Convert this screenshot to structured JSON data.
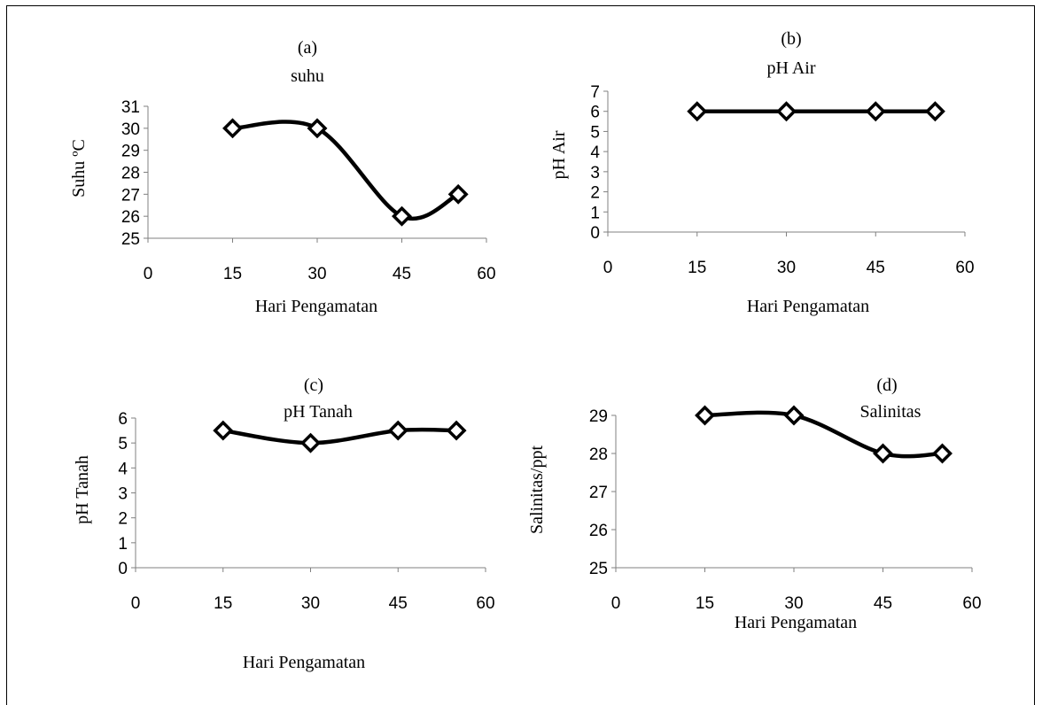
{
  "chart_data": [
    {
      "type": "line",
      "panel_label": "(a)",
      "title": "suhu",
      "xlabel": "Hari Pengamatan",
      "ylabel": "Suhu ºC",
      "xlim": [
        0,
        60
      ],
      "ylim": [
        25,
        31
      ],
      "xticks": [
        "0",
        "15",
        "30",
        "45",
        "60"
      ],
      "yticks": [
        "25",
        "26",
        "27",
        "28",
        "29",
        "30",
        "31"
      ],
      "x": [
        15,
        30,
        45,
        55
      ],
      "values": [
        30,
        30,
        26,
        27
      ],
      "smooth": true,
      "marker": "diamond",
      "grid": false
    },
    {
      "type": "line",
      "panel_label": "(b)",
      "title": "pH Air",
      "xlabel": "Hari Pengamatan",
      "ylabel": "pH Air",
      "xlim": [
        0,
        60
      ],
      "ylim": [
        0,
        7
      ],
      "xticks": [
        "0",
        "15",
        "30",
        "45",
        "60"
      ],
      "yticks": [
        "0",
        "1",
        "2",
        "3",
        "4",
        "5",
        "6",
        "7"
      ],
      "x": [
        15,
        30,
        45,
        55
      ],
      "values": [
        6,
        6,
        6,
        6
      ],
      "smooth": true,
      "marker": "diamond",
      "grid": false
    },
    {
      "type": "line",
      "panel_label": "(c)",
      "title": "pH Tanah",
      "xlabel": "Hari Pengamatan",
      "ylabel": "pH Tanah",
      "xlim": [
        0,
        60
      ],
      "ylim": [
        0,
        6
      ],
      "xticks": [
        "0",
        "15",
        "30",
        "45",
        "60"
      ],
      "yticks": [
        "0",
        "1",
        "2",
        "3",
        "4",
        "5",
        "6"
      ],
      "x": [
        15,
        30,
        45,
        55
      ],
      "values": [
        5.5,
        5,
        5.5,
        5.5
      ],
      "smooth": true,
      "marker": "diamond",
      "grid": false
    },
    {
      "type": "line",
      "panel_label": "(d)",
      "title": "Salinitas",
      "xlabel": "Hari Pengamatan",
      "ylabel": "Salinitas/ppt",
      "xlim": [
        0,
        60
      ],
      "ylim": [
        25,
        29
      ],
      "xticks": [
        "0",
        "15",
        "30",
        "45",
        "60"
      ],
      "yticks": [
        "25",
        "26",
        "27",
        "28",
        "29"
      ],
      "x": [
        15,
        30,
        45,
        55
      ],
      "values": [
        29,
        29,
        28,
        28
      ],
      "smooth": true,
      "marker": "diamond",
      "grid": false
    }
  ]
}
